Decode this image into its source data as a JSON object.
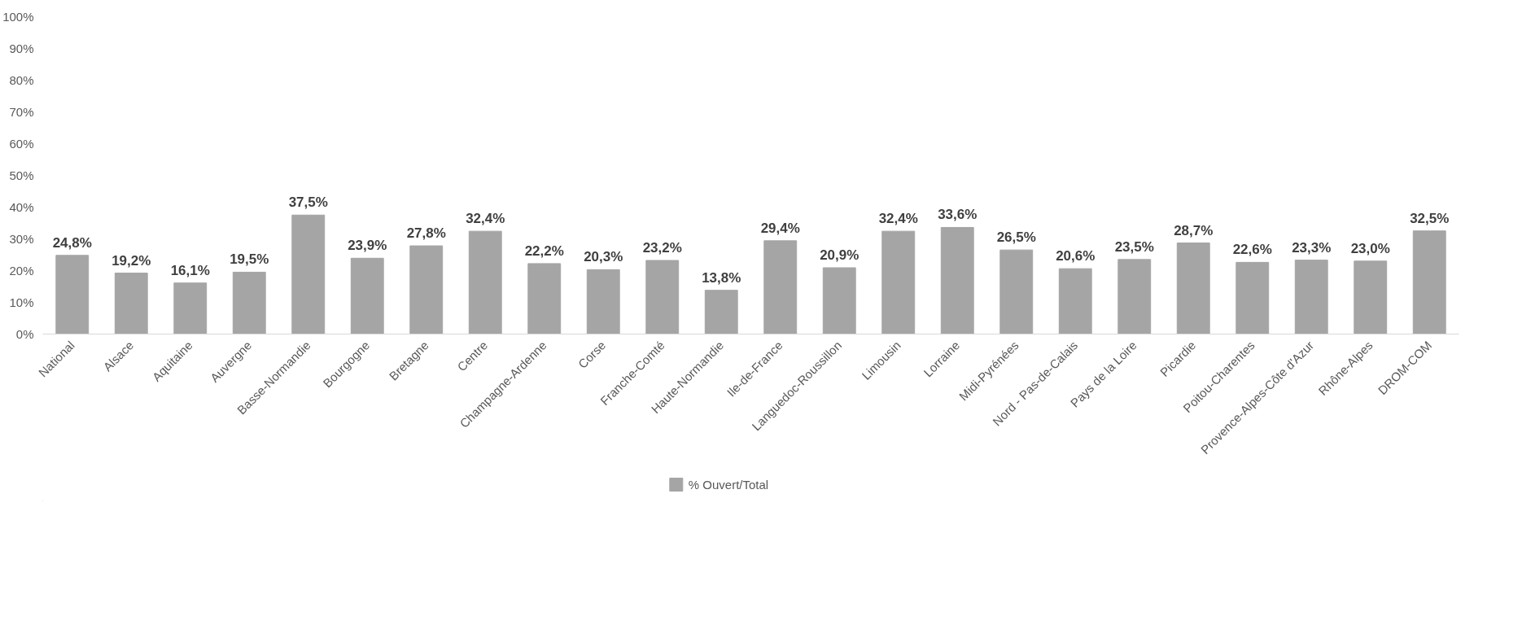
{
  "chart_data": {
    "type": "bar",
    "categories": [
      "National",
      "Alsace",
      "Aquitaine",
      "Auvergne",
      "Basse-Normandie",
      "Bourgogne",
      "Bretagne",
      "Centre",
      "Champagne-Ardenne",
      "Corse",
      "Franche-Comté",
      "Haute-Normandie",
      "Ile-de-France",
      "Languedoc-Roussillon",
      "Limousin",
      "Lorraine",
      "Midi-Pyrénées",
      "Nord - Pas-de-Calais",
      "Pays de la Loire",
      "Picardie",
      "Poitou-Charentes",
      "Provence-Alpes-Côte d'Azur",
      "Rhône-Alpes",
      "DROM-COM"
    ],
    "series": [
      {
        "name": "% Ouvert/Total",
        "color": "#a5a5a5",
        "values": [
          24.8,
          19.2,
          16.1,
          19.5,
          37.5,
          23.9,
          27.8,
          32.4,
          22.2,
          20.3,
          23.2,
          13.8,
          29.4,
          20.9,
          32.4,
          33.6,
          26.5,
          20.6,
          23.5,
          28.7,
          22.6,
          23.3,
          23.0,
          32.5
        ]
      }
    ],
    "value_labels": [
      "24,8%",
      "19,2%",
      "16,1%",
      "19,5%",
      "37,5%",
      "23,9%",
      "27,8%",
      "32,4%",
      "22,2%",
      "20,3%",
      "23,2%",
      "13,8%",
      "29,4%",
      "20,9%",
      "32,4%",
      "33,6%",
      "26,5%",
      "20,6%",
      "23,5%",
      "28,7%",
      "22,6%",
      "23,3%",
      "23,0%",
      "32,5%"
    ],
    "ylim": [
      0,
      100
    ],
    "yticks": [
      {
        "value": 0,
        "label": "0%"
      },
      {
        "value": 10,
        "label": "10%"
      },
      {
        "value": 20,
        "label": "20%"
      },
      {
        "value": 30,
        "label": "30%"
      },
      {
        "value": 40,
        "label": "40%"
      },
      {
        "value": 50,
        "label": "50%"
      },
      {
        "value": 60,
        "label": "60%"
      },
      {
        "value": 70,
        "label": "70%"
      },
      {
        "value": 80,
        "label": "80%"
      },
      {
        "value": 90,
        "label": "90%"
      },
      {
        "value": 100,
        "label": "100%"
      }
    ],
    "grid": false,
    "legend": "bottom"
  }
}
